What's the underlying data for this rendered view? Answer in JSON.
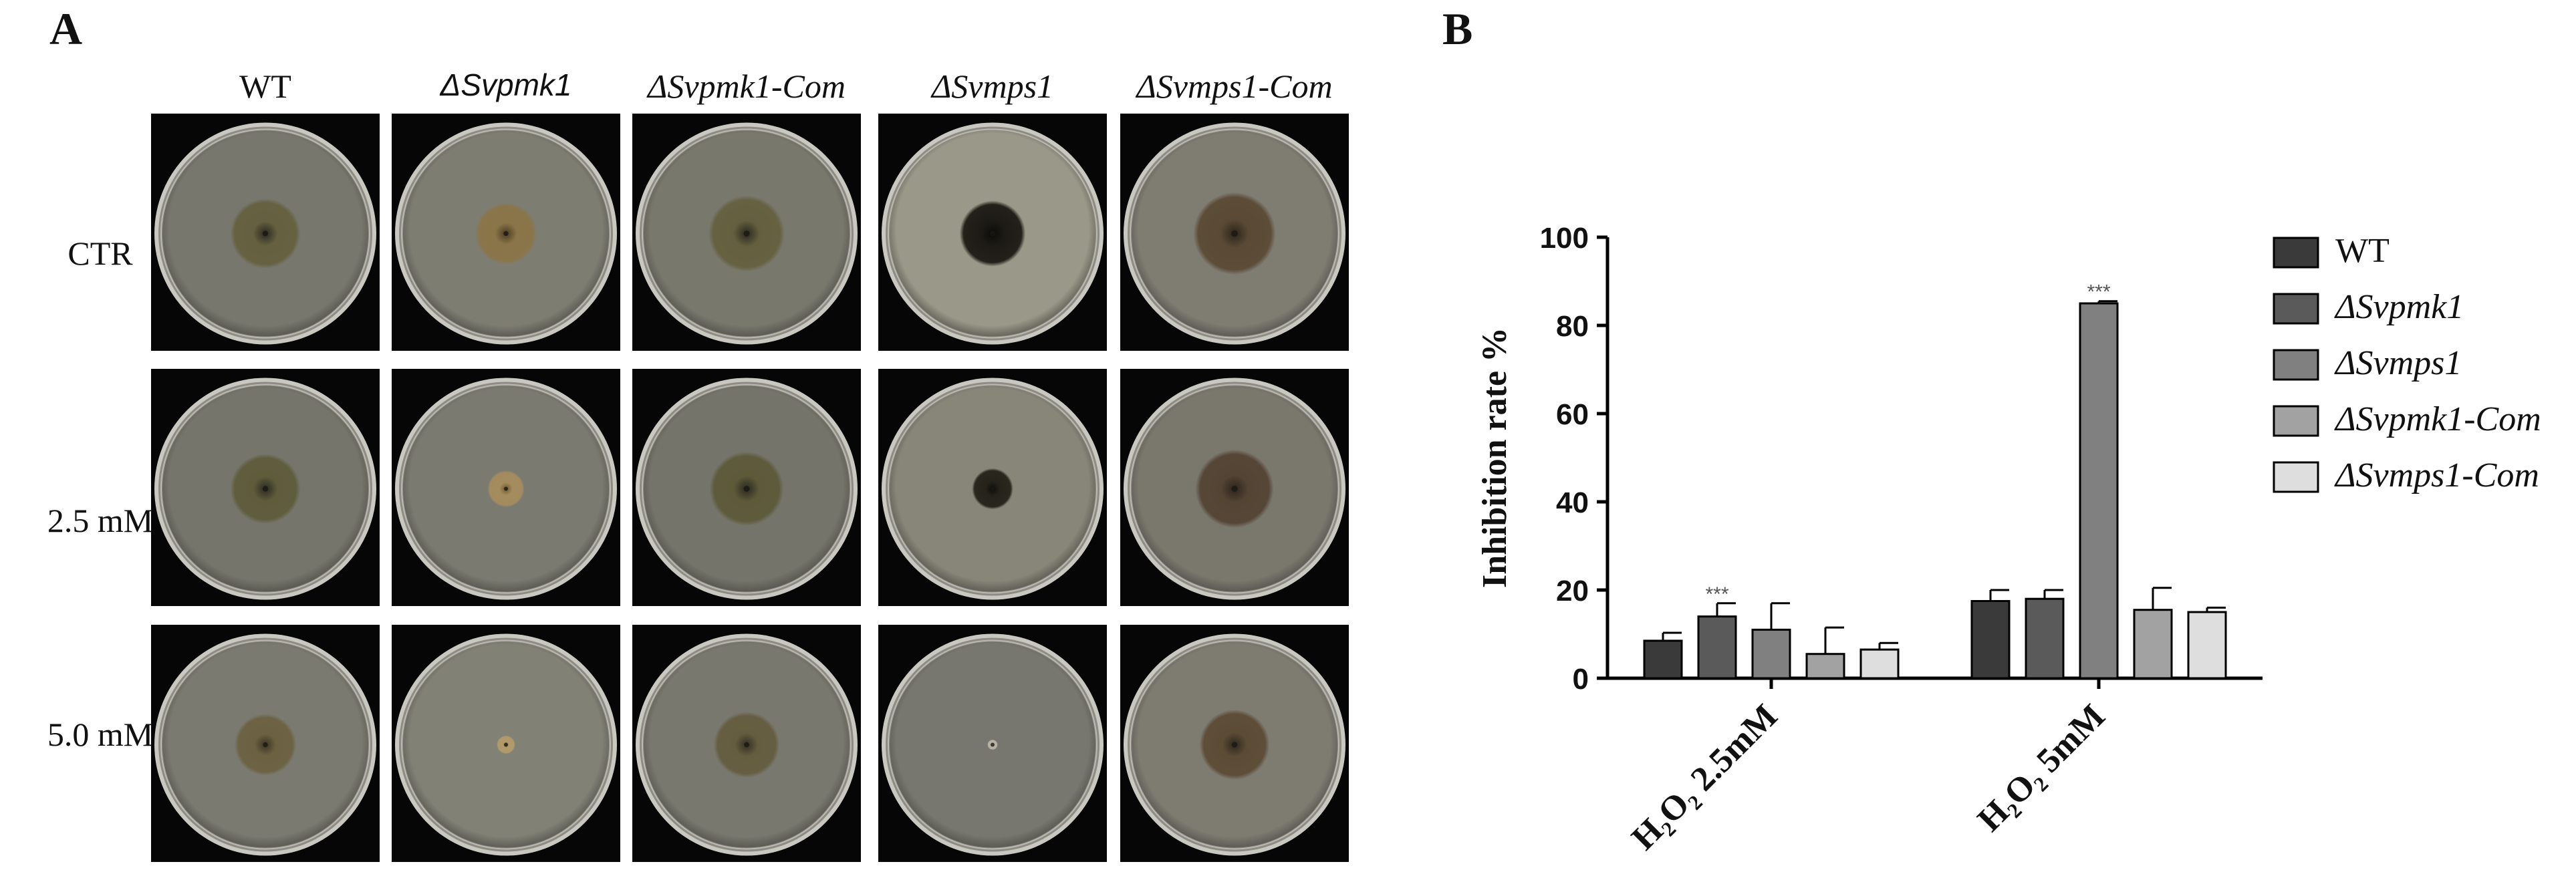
{
  "panel_a": {
    "letter": "A",
    "columns": [
      "WT",
      "ΔSvpmk1",
      "ΔSvpmk1-Com",
      "ΔSvmps1",
      "ΔSvmps1-Com"
    ],
    "rows": [
      "CTR",
      "2.5 mM",
      "5.0 mM"
    ],
    "plates": [
      [
        {
          "colony_rel": 0.34,
          "agar": "#77776d",
          "colony": "#65603f",
          "center": "#2a2820"
        },
        {
          "colony_rel": 0.3,
          "agar": "#7e7d72",
          "colony": "#8a7548",
          "center": "#4a3a22"
        },
        {
          "colony_rel": 0.37,
          "agar": "#79786d",
          "colony": "#64603f",
          "center": "#2a2820"
        },
        {
          "colony_rel": 0.32,
          "agar": "#9a9888",
          "colony": "#1c1a14",
          "center": "#0c0b08"
        },
        {
          "colony_rel": 0.4,
          "agar": "#7f7c72",
          "colony": "#5a4a35",
          "center": "#2b241a"
        }
      ],
      [
        {
          "colony_rel": 0.34,
          "agar": "#75756b",
          "colony": "#5f5c3c",
          "center": "#2b291f"
        },
        {
          "colony_rel": 0.18,
          "agar": "#7a7a70",
          "colony": "#a58c5e",
          "center": "#6c5633"
        },
        {
          "colony_rel": 0.36,
          "agar": "#74746a",
          "colony": "#5d5a3a",
          "center": "#2a281e"
        },
        {
          "colony_rel": 0.2,
          "agar": "#888679",
          "colony": "#25221a",
          "center": "#0d0c09"
        },
        {
          "colony_rel": 0.38,
          "agar": "#7a776d",
          "colony": "#544434",
          "center": "#2b241a"
        }
      ],
      [
        {
          "colony_rel": 0.3,
          "agar": "#7b7a70",
          "colony": "#6c6242",
          "center": "#3b3322"
        },
        {
          "colony_rel": 0.09,
          "agar": "#828176",
          "colony": "#b29a6a",
          "center": "#8c7248"
        },
        {
          "colony_rel": 0.32,
          "agar": "#79786e",
          "colony": "#655d40",
          "center": "#332d20"
        },
        {
          "colony_rel": 0.05,
          "agar": "#777770",
          "colony": "#b9b3a3",
          "center": "#d0cab8"
        },
        {
          "colony_rel": 0.34,
          "agar": "#7e7b71",
          "colony": "#5c4c36",
          "center": "#2d261b"
        }
      ]
    ]
  },
  "panel_b": {
    "letter": "B",
    "chart_data": {
      "type": "bar",
      "categories": [
        "H₂O₂ 2.5mM",
        "H₂O₂ 5mM"
      ],
      "series": [
        {
          "name": "WT",
          "color": "#3a3a3a",
          "values": [
            8.5,
            17.5
          ],
          "errors": [
            1.8,
            2.5
          ]
        },
        {
          "name": "ΔSvpmk1",
          "color": "#5a5a5a",
          "values": [
            14,
            18
          ],
          "errors": [
            3,
            2
          ]
        },
        {
          "name": "ΔSvmps1",
          "color": "#808080",
          "values": [
            11,
            85
          ],
          "errors": [
            6,
            0.5
          ]
        },
        {
          "name": "ΔSvpmk1-Com",
          "color": "#a2a2a2",
          "values": [
            5.5,
            15.5
          ],
          "errors": [
            6,
            5
          ]
        },
        {
          "name": "ΔSvmps1-Com",
          "color": "#dedede",
          "values": [
            6.5,
            15
          ],
          "errors": [
            1.5,
            1
          ]
        }
      ],
      "significance": [
        {
          "category": 0,
          "series": 1,
          "label": "***"
        },
        {
          "category": 1,
          "series": 2,
          "label": "***"
        }
      ],
      "ylabel": "Inhibition rate %",
      "ylim": [
        0,
        100
      ],
      "yticks": [
        "0",
        "20",
        "40",
        "60",
        "80",
        "100"
      ],
      "legend_position": "right",
      "grid": false
    }
  }
}
